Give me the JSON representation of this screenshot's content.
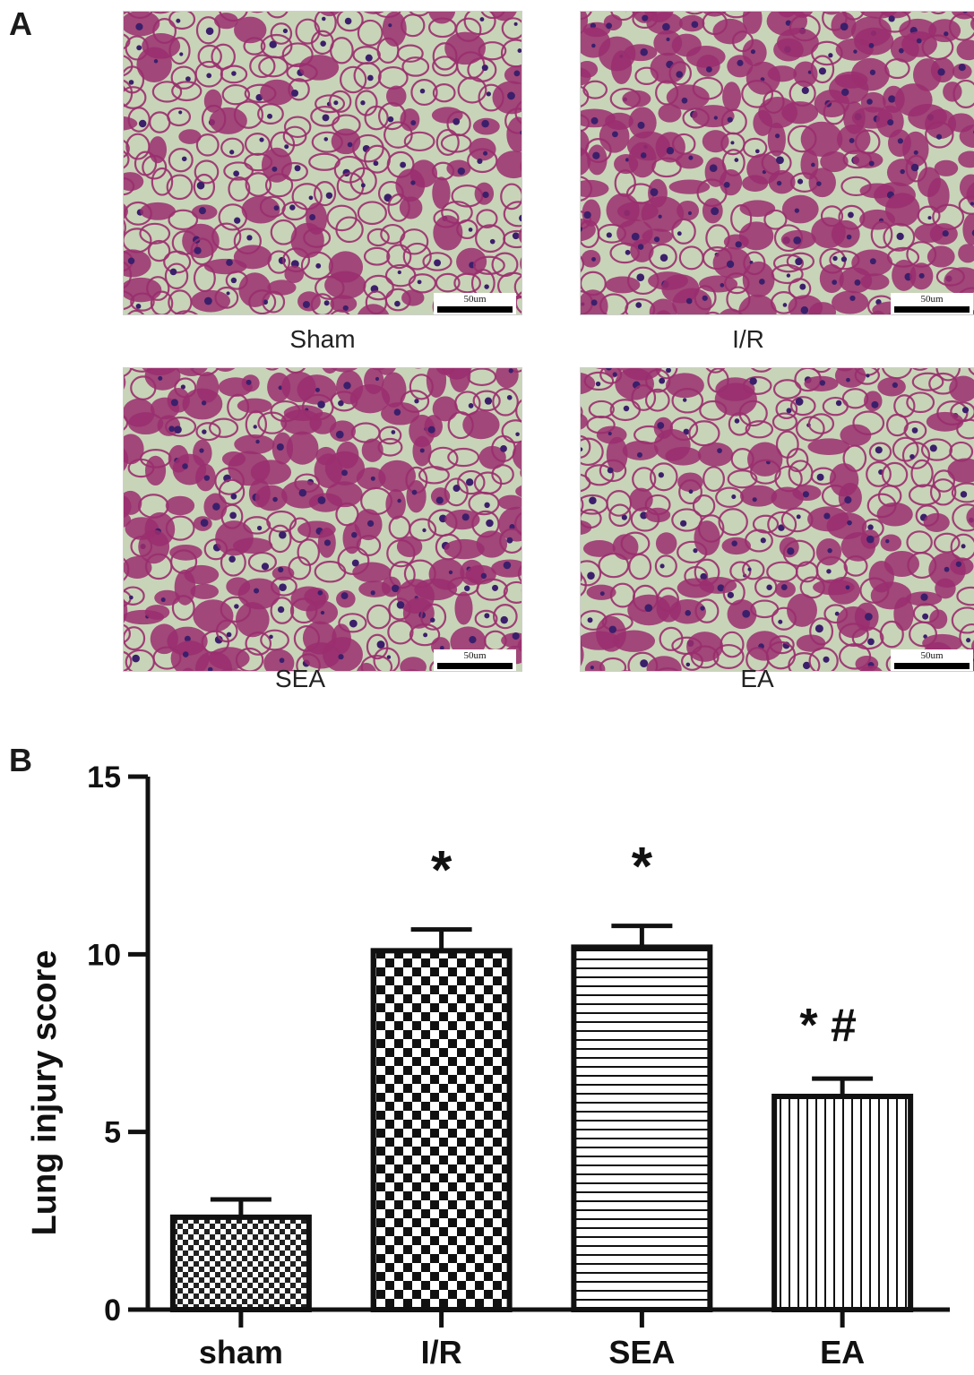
{
  "panel_a": {
    "letter": "A",
    "images": [
      {
        "label": "Sham",
        "scale_text": "50um",
        "density": 0.22,
        "seed": 11
      },
      {
        "label": "I/R",
        "scale_text": "50um",
        "density": 0.62,
        "seed": 23
      },
      {
        "label": "SEA",
        "scale_text": "50um",
        "density": 0.55,
        "seed": 37
      },
      {
        "label": "EA",
        "scale_text": "50um",
        "density": 0.34,
        "seed": 51
      }
    ],
    "colors": {
      "background": "#c8d4b8",
      "tissue": "#9a2e6e",
      "nuclei": "#3b1f6b"
    }
  },
  "panel_b": {
    "letter": "B"
  },
  "chart_data": {
    "type": "bar",
    "categories": [
      "sham",
      "I/R",
      "SEA",
      "EA"
    ],
    "values": [
      2.6,
      10.1,
      10.2,
      6.0
    ],
    "errors": [
      0.5,
      0.6,
      0.6,
      0.5
    ],
    "annotations": [
      "",
      "*",
      "*",
      "* #"
    ],
    "patterns": [
      "fine-checker",
      "checker",
      "horizontal-lines",
      "vertical-lines"
    ],
    "ylabel": "Lung injury score",
    "xlabel": "",
    "ylim": [
      0,
      15
    ],
    "yticks": [
      0,
      5,
      10,
      15
    ],
    "grid": false,
    "legend": "none"
  }
}
